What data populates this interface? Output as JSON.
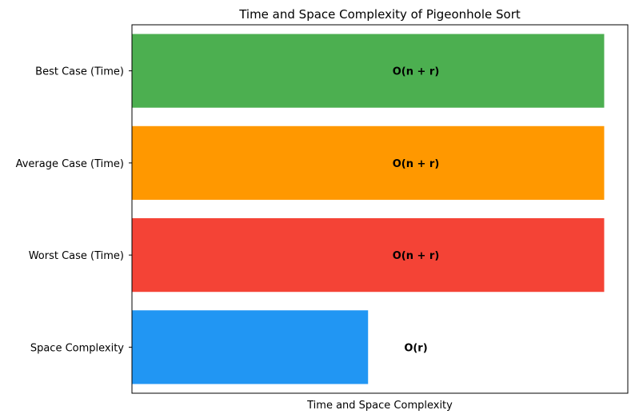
{
  "chart_data": {
    "type": "bar",
    "orientation": "horizontal",
    "title": "Time and Space Complexity of Pigeonhole Sort",
    "xlabel": "Time and Space Complexity",
    "ylabel": "",
    "x_ticks_visible": false,
    "grid": false,
    "legend": "none",
    "categories": [
      "Best Case (Time)",
      "Average Case (Time)",
      "Worst Case (Time)",
      "Space Complexity"
    ],
    "values": [
      2,
      2,
      2,
      1
    ],
    "labels": [
      "O(n + r)",
      "O(n + r)",
      "O(n + r)",
      "O(r)"
    ],
    "colors": [
      "#4caf50",
      "#ff9800",
      "#f44336",
      "#2196f3"
    ],
    "xlim": [
      0,
      2.1
    ]
  }
}
